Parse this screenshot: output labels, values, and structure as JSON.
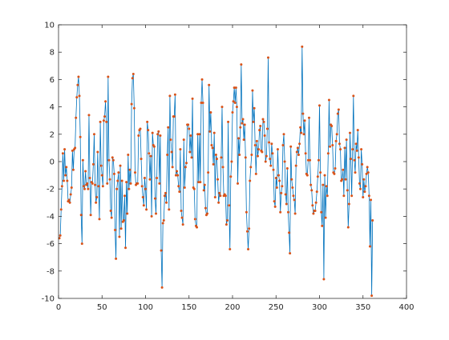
{
  "chart_data": {
    "type": "line",
    "title": "",
    "xlabel": "",
    "ylabel": "",
    "xlim": [
      0,
      400
    ],
    "ylim": [
      -10,
      10
    ],
    "xticks": [
      0,
      50,
      100,
      150,
      200,
      250,
      300,
      350,
      400
    ],
    "yticks": [
      -10,
      -8,
      -6,
      -4,
      -2,
      0,
      2,
      4,
      6,
      8,
      10
    ],
    "grid": false,
    "legend": "none",
    "line_color": "#0072BD",
    "marker_color": "#D95319",
    "marker": "dot",
    "series": [
      {
        "x_start": 1,
        "x_step": 1,
        "values": [
          -5.6,
          -5.4,
          -3.5,
          -1.8,
          0.6,
          -1.4,
          0.9,
          -1.0,
          -0.4,
          -1.4,
          -2.9,
          -2.8,
          -3.0,
          -2.4,
          -1.9,
          0.8,
          -0.6,
          0.9,
          1.0,
          3.2,
          4.7,
          5.6,
          6.2,
          4.8,
          1.8,
          -3.9,
          -6.0,
          0.1,
          -1.8,
          -2.0,
          -0.7,
          -1.7,
          -1.6,
          -2.0,
          3.4,
          -1.2,
          -3.9,
          -1.5,
          -1.6,
          -0.2,
          2.0,
          -1.7,
          -3.0,
          -2.6,
          0.7,
          -1.8,
          -4.2,
          2.9,
          -0.3,
          -1.0,
          -1.8,
          3.0,
          3.3,
          4.4,
          2.9,
          -1.6,
          6.2,
          0.1,
          -1.3,
          -3.6,
          -4.1,
          0.3,
          0.1,
          -0.9,
          -5.0,
          -7.1,
          -2.0,
          -1.4,
          -0.8,
          -5.5,
          -0.3,
          -4.9,
          -1.4,
          -4.4,
          -4.3,
          -2.5,
          -6.3,
          -1.5,
          -3.8,
          0.5,
          -2.0,
          -0.6,
          -1.6,
          4.2,
          6.1,
          6.4,
          3.9,
          -0.8,
          -1.7,
          -1.6,
          -1.6,
          1.9,
          2.3,
          2.4,
          0.2,
          -1.8,
          -2.6,
          -3.2,
          -1.2,
          -2.0,
          -3.5,
          2.9,
          2.3,
          0.6,
          -1.3,
          0.4,
          -4.0,
          2.1,
          1.2,
          1.1,
          -2.7,
          -3.8,
          -1.2,
          2.0,
          2.2,
          -1.6,
          1.9,
          -6.5,
          -9.2,
          -4.5,
          -4.3,
          -2.5,
          -2.3,
          -3.0,
          0.5,
          2.5,
          -3.5,
          4.8,
          1.6,
          0.7,
          -0.4,
          3.3,
          3.3,
          4.9,
          -1.0,
          -0.7,
          -1.0,
          -1.8,
          -2.2,
          0.9,
          -3.6,
          -4.1,
          -4.6,
          1.6,
          -1.9,
          -0.4,
          -0.1,
          2.7,
          2.7,
          2.4,
          0.7,
          1.9,
          0.3,
          4.6,
          -1.9,
          -2.0,
          -4.2,
          -4.7,
          -4.8,
          2.0,
          -1.5,
          2.0,
          -1.5,
          4.3,
          6.0,
          4.3,
          -2.1,
          -1.7,
          -3.4,
          -3.9,
          -3.8,
          -0.8,
          5.6,
          2.2,
          3.6,
          1.2,
          1.0,
          -0.2,
          2.1,
          -2.6,
          0.5,
          0.2,
          -1.3,
          -3.0,
          -2.3,
          -2.5,
          0.3,
          4.0,
          -0.4,
          -2.5,
          -2.4,
          -2.5,
          -4.6,
          -4.3,
          2.9,
          -3.2,
          -6.4,
          -1.1,
          0.0,
          3.6,
          4.4,
          5.4,
          4.3,
          5.4,
          4.0,
          -1.6,
          1.7,
          0.5,
          2.5,
          7.1,
          2.8,
          3.1,
          1.6,
          2.7,
          0.3,
          -3.7,
          -5.1,
          -6.4,
          -4.9,
          -1.4,
          -0.4,
          0.5,
          5.2,
          2.9,
          3.9,
          1.2,
          -0.9,
          1.5,
          0.4,
          0.9,
          2.3,
          2.6,
          0.8,
          0.7,
          3.1,
          2.9,
          1.9,
          0.0,
          0.4,
          2.4,
          7.6,
          1.4,
          0.2,
          -0.3,
          1.3,
          0.6,
          -0.6,
          -2.9,
          -3.3,
          -1.2,
          -1.9,
          0.9,
          -1.0,
          -1.4,
          -3.7,
          -2.3,
          -1.8,
          1.2,
          2.0,
          0.0,
          -2.4,
          -3.1,
          -0.5,
          -3.7,
          -5.2,
          -6.7,
          1.1,
          -1.3,
          -1.9,
          -2.5,
          -2.8,
          -3.8,
          -0.3,
          0.7,
          1.0,
          0.5,
          1.3,
          2.5,
          2.1,
          8.4,
          3.5,
          2.0,
          3.0,
          0.6,
          -0.9,
          -1.0,
          0.1,
          3.2,
          0.1,
          -1.7,
          -2.1,
          -3.2,
          -3.8,
          -3.6,
          -3.6,
          -3.0,
          -2.2,
          -1.1,
          0.1,
          4.1,
          -0.8,
          -3.7,
          -4.7,
          -1.7,
          -8.6,
          -1.0,
          -4.1,
          -1.8,
          -2.5,
          0.6,
          4.5,
          1.1,
          2.7,
          2.6,
          1.2,
          -0.8,
          -0.9,
          -0.5,
          1.5,
          2.0,
          3.5,
          3.8,
          1.3,
          0.9,
          -1.4,
          -1.3,
          -0.6,
          -2.5,
          1.0,
          -1.3,
          1.6,
          -2.1,
          -4.8,
          -3.1,
          2.1,
          0.2,
          -2.5,
          0.9,
          4.8,
          0.1,
          -0.8,
          1.3,
          0.8,
          2.3,
          0.3,
          -1.6,
          -2.0,
          0.9,
          -0.2,
          -2.6,
          -1.3,
          -2.2,
          -1.8,
          -0.9,
          -0.4,
          -0.8,
          -2.5,
          -6.2,
          -2.8,
          -9.8,
          -4.3
        ]
      }
    ]
  }
}
